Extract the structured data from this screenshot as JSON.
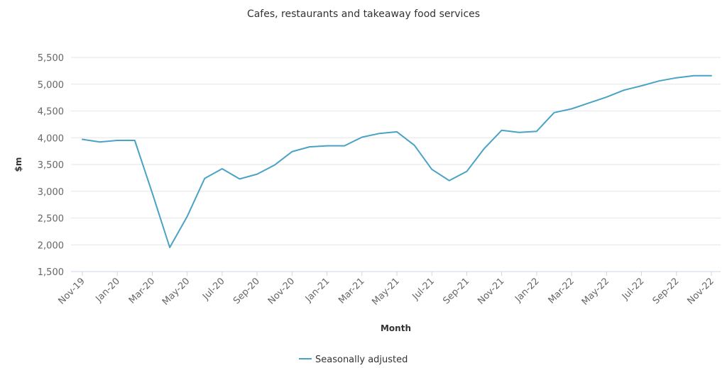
{
  "chart_data": {
    "type": "line",
    "title": "Cafes, restaurants and takeaway food services",
    "xlabel": "Month",
    "ylabel": "$m",
    "ylim": [
      1500,
      5500
    ],
    "yticks": [
      "1,500",
      "2,000",
      "2,500",
      "3,000",
      "3,500",
      "4,000",
      "4,500",
      "5,000",
      "5,500"
    ],
    "ytick_values": [
      1500,
      2000,
      2500,
      3000,
      3500,
      4000,
      4500,
      5000,
      5500
    ],
    "x": [
      "Nov-19",
      "Dec-19",
      "Jan-20",
      "Feb-20",
      "Mar-20",
      "Apr-20",
      "May-20",
      "Jun-20",
      "Jul-20",
      "Aug-20",
      "Sep-20",
      "Oct-20",
      "Nov-20",
      "Dec-20",
      "Jan-21",
      "Feb-21",
      "Mar-21",
      "Apr-21",
      "May-21",
      "Jun-21",
      "Jul-21",
      "Aug-21",
      "Sep-21",
      "Oct-21",
      "Nov-21",
      "Dec-21",
      "Jan-22",
      "Feb-22",
      "Mar-22",
      "Apr-22",
      "May-22",
      "Jun-22",
      "Jul-22",
      "Aug-22",
      "Sep-22",
      "Oct-22",
      "Nov-22"
    ],
    "xtick_labels": [
      "Nov-19",
      "Jan-20",
      "Mar-20",
      "May-20",
      "Jul-20",
      "Sep-20",
      "Nov-20",
      "Jan-21",
      "Mar-21",
      "May-21",
      "Jul-21",
      "Sep-21",
      "Nov-21",
      "Jan-22",
      "Mar-22",
      "May-22",
      "Jul-22",
      "Sep-22",
      "Nov-22"
    ],
    "grid": true,
    "legend": "bottom-center",
    "series": [
      {
        "name": "Seasonally adjusted",
        "color": "#4aa3c4",
        "values": [
          3970,
          3920,
          3950,
          3950,
          2970,
          1950,
          2530,
          3240,
          3420,
          3230,
          3320,
          3490,
          3740,
          3830,
          3850,
          3850,
          4010,
          4080,
          4110,
          3860,
          3410,
          3200,
          3370,
          3800,
          4140,
          4100,
          4120,
          4470,
          4540,
          4650,
          4760,
          4890,
          4970,
          5060,
          5120,
          5160,
          5160
        ]
      }
    ]
  }
}
